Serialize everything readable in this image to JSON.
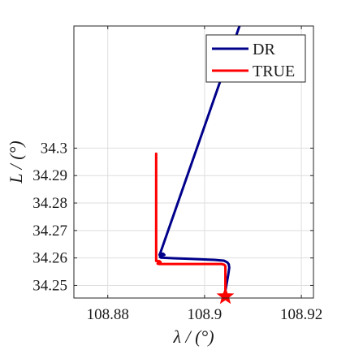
{
  "chart_data": {
    "type": "line",
    "title": "",
    "xlabel": "λ / (°)",
    "ylabel": "L / (°)",
    "xlim": [
      108.873,
      108.9225
    ],
    "ylim": [
      34.2454,
      34.3445
    ],
    "xticks": [
      108.88,
      108.9,
      108.92
    ],
    "xtick_labels": [
      "108.88",
      "108.9",
      "108.92"
    ],
    "yticks": [
      34.25,
      34.26,
      34.27,
      34.28,
      34.29,
      34.3
    ],
    "ytick_labels": [
      "34.25",
      "34.26",
      "34.27",
      "34.28",
      "34.29",
      "34.3"
    ],
    "grid": true,
    "legend_position": "top-right",
    "series": [
      {
        "name": "DR",
        "color": "#00008b",
        "x": [
          108.9073,
          108.8907,
          108.8907,
          108.8911,
          108.8915,
          108.8917,
          108.8913,
          108.8909,
          108.8908,
          108.891,
          108.8935,
          108.8965,
          108.8995,
          108.902,
          108.904,
          108.9047,
          108.905,
          108.9051,
          108.9049,
          108.9046,
          108.9043,
          108.9041
        ],
        "y": [
          34.3449,
          34.261,
          34.2613,
          34.2616,
          34.2615,
          34.2611,
          34.2609,
          34.2606,
          34.2603,
          34.2601,
          34.2599,
          34.2597,
          34.2595,
          34.2593,
          34.259,
          34.2584,
          34.2577,
          34.2565,
          34.254,
          34.251,
          34.248,
          34.2465
        ]
      },
      {
        "name": "TRUE",
        "color": "#ff0000",
        "x": [
          108.89,
          108.89,
          108.89,
          108.8903,
          108.8907,
          108.8909,
          108.8907,
          108.8903,
          108.8903,
          108.8906,
          108.8935,
          108.8965,
          108.8995,
          108.902,
          108.9035,
          108.9041,
          108.9043,
          108.9043,
          108.9043
        ],
        "y": [
          34.298,
          34.26,
          34.2589,
          34.2589,
          34.2588,
          34.2585,
          34.2581,
          34.258,
          34.2579,
          34.2578,
          34.2578,
          34.2578,
          34.2578,
          34.2578,
          34.2578,
          34.2575,
          34.257,
          34.255,
          34.246
        ]
      }
    ],
    "end_marker": {
      "shape": "star",
      "color": "#ff0000",
      "x": 108.9043,
      "y": 34.246
    }
  }
}
